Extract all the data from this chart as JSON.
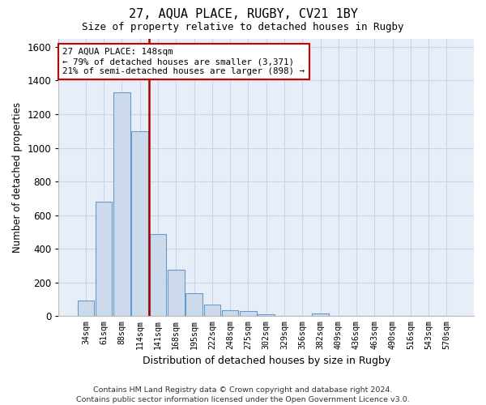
{
  "title": "27, AQUA PLACE, RUGBY, CV21 1BY",
  "subtitle": "Size of property relative to detached houses in Rugby",
  "xlabel": "Distribution of detached houses by size in Rugby",
  "ylabel": "Number of detached properties",
  "footer_line1": "Contains HM Land Registry data © Crown copyright and database right 2024.",
  "footer_line2": "Contains public sector information licensed under the Open Government Licence v3.0.",
  "categories": [
    "34sqm",
    "61sqm",
    "88sqm",
    "114sqm",
    "141sqm",
    "168sqm",
    "195sqm",
    "222sqm",
    "248sqm",
    "275sqm",
    "302sqm",
    "329sqm",
    "356sqm",
    "382sqm",
    "409sqm",
    "436sqm",
    "463sqm",
    "490sqm",
    "516sqm",
    "543sqm",
    "570sqm"
  ],
  "values": [
    95,
    680,
    1330,
    1100,
    490,
    275,
    135,
    70,
    35,
    30,
    10,
    0,
    0,
    15,
    0,
    0,
    0,
    0,
    0,
    0,
    0
  ],
  "bar_color": "#cddaeb",
  "bar_edge_color": "#6699cc",
  "highlight_line_color": "#aa0000",
  "annotation_line1": "27 AQUA PLACE: 148sqm",
  "annotation_line2": "← 79% of detached houses are smaller (3,371)",
  "annotation_line3": "21% of semi-detached houses are larger (898) →",
  "annotation_box_color": "#ffffff",
  "annotation_box_edge": "#cc0000",
  "ylim": [
    0,
    1650
  ],
  "yticks": [
    0,
    200,
    400,
    600,
    800,
    1000,
    1200,
    1400,
    1600
  ],
  "grid_color": "#c8d4e8",
  "background_color": "#e8eef8",
  "title_fontsize": 11,
  "subtitle_fontsize": 9
}
